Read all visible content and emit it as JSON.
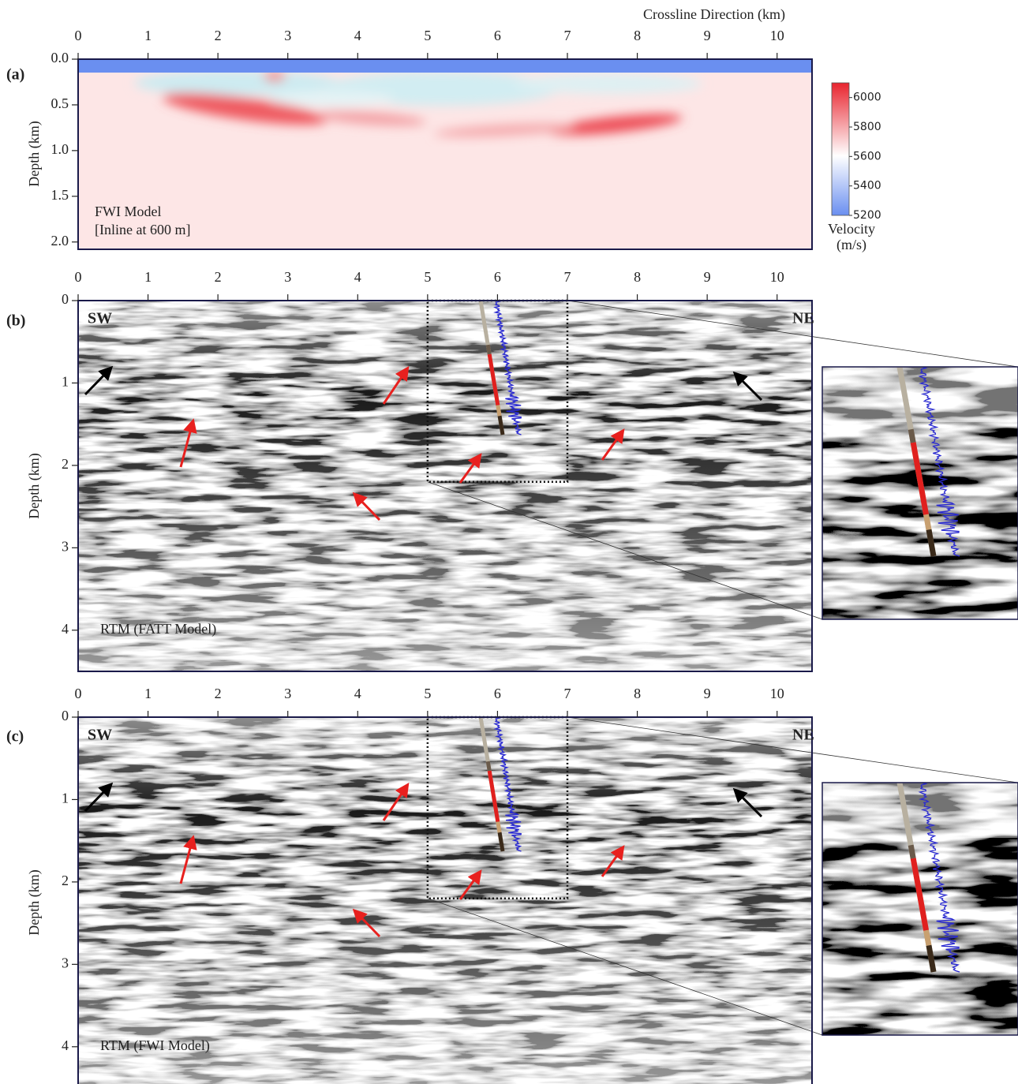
{
  "chart_data": [
    {
      "type": "heatmap",
      "panel_label": "(a)",
      "x_label": "Crossline Direction (km)",
      "y_label": "Depth (km)",
      "annotations": [
        "FWI Model",
        "[Inline at 600 m]"
      ],
      "xlim": [
        0,
        10.5
      ],
      "xticks": [
        0,
        1,
        2,
        3,
        4,
        5,
        6,
        7,
        8,
        9,
        10
      ],
      "ylim": [
        0,
        2.08
      ],
      "yticks": [
        {
          "value": 0,
          "label": "0.0"
        },
        0.5,
        {
          "value": 1,
          "label": "1.0"
        },
        1.5,
        {
          "value": 2,
          "label": "2.0"
        }
      ],
      "colorbar": {
        "clim": [
          5200,
          6100
        ],
        "cticks": [
          5200,
          5400,
          5600,
          5800,
          6000
        ],
        "label": [
          "Velocity",
          "(m/s)"
        ],
        "colors": [
          "#6a8ff0",
          "#ffffff",
          "#e8242e"
        ]
      }
    },
    {
      "type": "image",
      "panel_label": "(b)",
      "y_label": "Depth (km)",
      "annotations": [
        "SW",
        "NE",
        "RTM (FATT Model)"
      ],
      "xlim": [
        0,
        10.5
      ],
      "xticks": [
        0,
        1,
        2,
        3,
        4,
        5,
        6,
        7,
        8,
        9,
        10
      ],
      "ylim": [
        0,
        4.5
      ],
      "yticks": [
        0,
        1,
        2,
        3,
        4
      ]
    },
    {
      "type": "image",
      "panel_label": "(c)",
      "y_label": "Depth (km)",
      "annotations": [
        "SW",
        "NE",
        "RTM (FWI Model)"
      ],
      "xlim": [
        0,
        10.5
      ],
      "xticks": [
        0,
        1,
        2,
        3,
        4,
        5,
        6,
        7,
        8,
        9,
        10
      ],
      "ylim": [
        0,
        4.5
      ],
      "yticks": [
        0,
        1,
        2,
        3,
        4
      ]
    }
  ]
}
